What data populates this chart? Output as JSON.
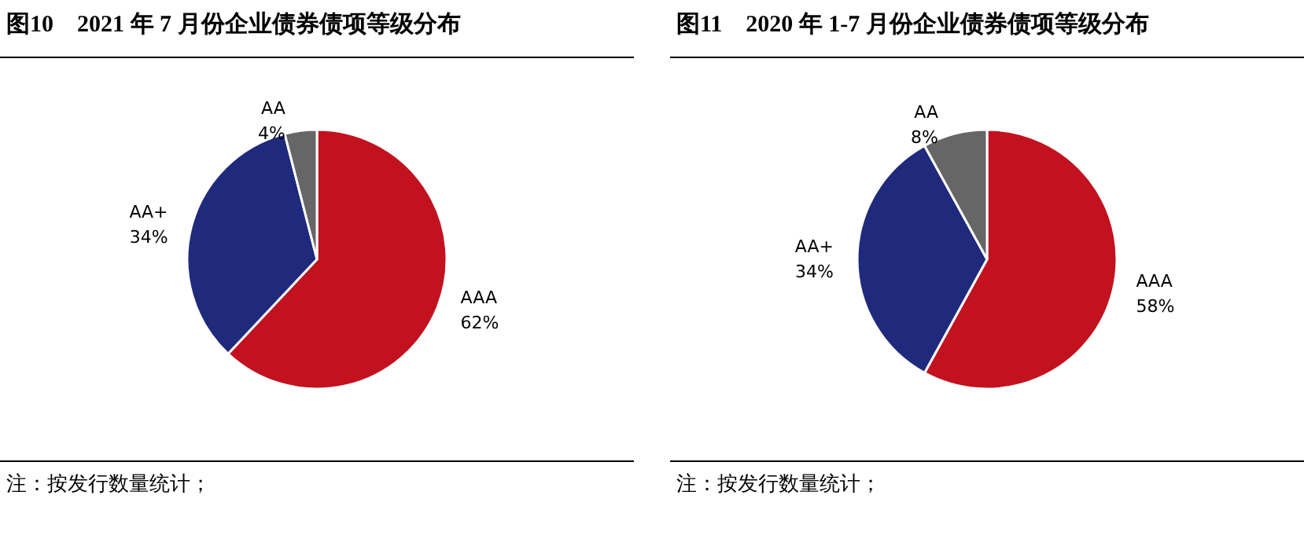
{
  "chart_data": [
    {
      "type": "pie",
      "title": "图10　2021 年 7 月份企业债券债项等级分布",
      "categories": [
        "AAA",
        "AA+",
        "AA"
      ],
      "values": [
        62,
        34,
        4
      ],
      "value_labels": [
        "62%",
        "34%",
        "4%"
      ],
      "colors": [
        "#c2121f",
        "#1f2a7d",
        "#666666"
      ],
      "annotations": [
        "注：按发行数量统计；"
      ]
    },
    {
      "type": "pie",
      "title": "图11　2020 年 1-7 月份企业债券债项等级分布",
      "categories": [
        "AAA",
        "AA+",
        "AA"
      ],
      "values": [
        58,
        34,
        8
      ],
      "value_labels": [
        "58%",
        "34%",
        "8%"
      ],
      "colors": [
        "#c2121f",
        "#1f2a7d",
        "#666666"
      ],
      "annotations": [
        "注：按发行数量统计；"
      ]
    }
  ]
}
